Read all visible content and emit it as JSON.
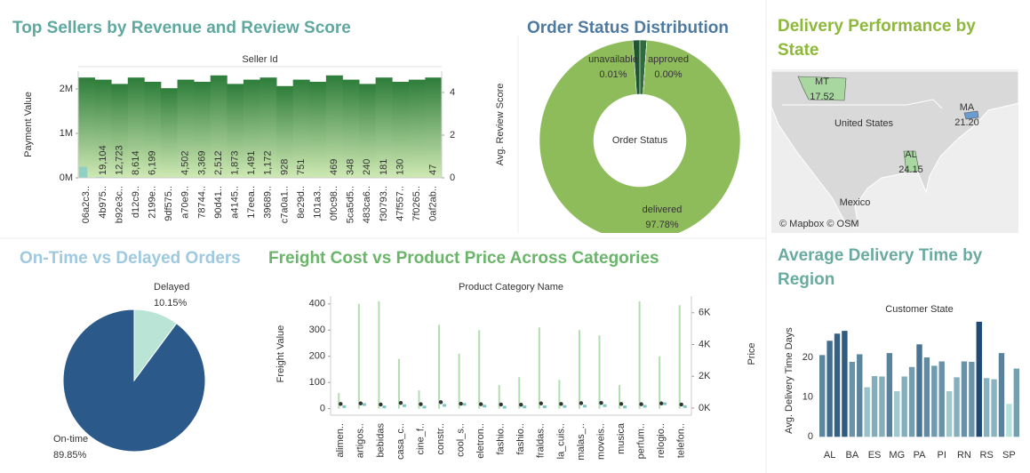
{
  "chart_data": [
    {
      "type": "combo",
      "title": "Top Sellers by Revenue and Review Score",
      "header": "Seller Id",
      "y_label": "Payment Value",
      "y2_label": "Avg. Review Score",
      "categories": [
        "06a2c3..",
        "4b975..",
        "b92e3c..",
        "d12c9..",
        "2199e..",
        "9df575..",
        "a70e9..",
        "78744..",
        "90d41..",
        "a4145..",
        "17eea..",
        "39689..",
        "c7a0a1..",
        "8e29d..",
        "101a3..",
        "0f0c98..",
        "5ca5d5..",
        "483ca6..",
        "f30793..",
        "47f557..",
        "7f0265..",
        "0af2ab.."
      ],
      "values": [
        250000,
        19104,
        12723,
        8614,
        6199,
        5000,
        4502,
        3369,
        2512,
        1873,
        1491,
        1172,
        928,
        751,
        600,
        469,
        348,
        240,
        181,
        130,
        90,
        47
      ],
      "value_labels": [
        null,
        "19,104",
        "12,723",
        "8,614",
        "6,199",
        null,
        "4,502",
        "3,369",
        "2,512",
        "1,873",
        "1,491",
        "1,172",
        "928",
        "751",
        null,
        "469",
        "348",
        "240",
        "181",
        "130",
        null,
        "47"
      ],
      "y2_values": [
        4.7,
        4.6,
        4.4,
        4.7,
        4.5,
        4.2,
        4.6,
        4.5,
        4.8,
        4.4,
        4.6,
        4.7,
        4.3,
        4.6,
        4.5,
        4.8,
        4.6,
        4.4,
        4.7,
        4.5,
        4.6,
        4.7
      ],
      "ylim": [
        0,
        2400000
      ],
      "yticks": [
        {
          "value": 0,
          "label": "0M"
        },
        {
          "value": 1000000,
          "label": "1M"
        },
        {
          "value": 2000000,
          "label": "2M"
        }
      ],
      "y2lim": [
        0,
        5
      ],
      "y2ticks": [
        0,
        2,
        4
      ],
      "color": "#8fd0c4",
      "y2_color_range": [
        "#cfe9b4",
        "#2e7d3a"
      ]
    },
    {
      "type": "donut",
      "title": "Order Status Distribution",
      "center_label": "Order Status",
      "categories": [
        null,
        null,
        "unavailable",
        "approved",
        "delivered"
      ],
      "values": [
        1.11,
        1.1,
        0.01,
        0.0,
        97.78
      ],
      "value_labels": [
        null,
        null,
        "0.01%",
        "0.00%",
        "97.78%"
      ],
      "colors": [
        "#1e5631",
        "#2f6b3c",
        "#173f26",
        "#3b7a45",
        "#8fbc5a"
      ]
    },
    {
      "type": "map",
      "title": "Delivery Performance by State",
      "categories": [
        "MT",
        "MA",
        "AL"
      ],
      "values": [
        17.52,
        21.2,
        24.15
      ],
      "value_labels": [
        "17.52",
        "21.20",
        "24.15"
      ],
      "colors": [
        "#a8d8a0",
        "#6a9bd1",
        "#a8d8a0"
      ],
      "places": [
        "United States",
        "Mexico"
      ],
      "attribution": "© Mapbox © OSM"
    },
    {
      "type": "pie",
      "title": "On-Time vs Delayed Orders",
      "categories": [
        "Delayed",
        "On-time"
      ],
      "values": [
        10.15,
        89.85
      ],
      "value_labels": [
        "10.15%",
        "89.85%"
      ],
      "colors": [
        "#b9e4d6",
        "#2b5a8a"
      ]
    },
    {
      "type": "box",
      "title": "Freight Cost vs Product Price Across Categories",
      "header": "Product Category Name",
      "y_label": "Freight Value",
      "y2_label": "Price",
      "categories": [
        "alimen..",
        "artigos..",
        "bebidas",
        "casa_c..",
        "cine_f..",
        "constr..",
        "cool_s..",
        "eletron..",
        "fashio..",
        "fashio..",
        "fraldas..",
        "la_cuis..",
        "malas_..",
        "moveis..",
        "musica",
        "perfum..",
        "relogio..",
        "telefon.."
      ],
      "values": [
        18,
        20,
        16,
        22,
        17,
        25,
        19,
        17,
        16,
        15,
        20,
        18,
        21,
        22,
        18,
        17,
        20,
        16
      ],
      "max_values": [
        60,
        400,
        410,
        190,
        70,
        320,
        210,
        300,
        90,
        120,
        310,
        110,
        300,
        280,
        90,
        410,
        200,
        395
      ],
      "y2_values": [
        120,
        250,
        100,
        180,
        90,
        200,
        260,
        150,
        80,
        100,
        110,
        130,
        150,
        180,
        100,
        140,
        300,
        120
      ],
      "ylim": [
        -25,
        430
      ],
      "yticks": [
        0,
        100,
        200,
        300,
        400
      ],
      "y2lim": [
        -450,
        7050
      ],
      "y2ticks": [
        {
          "value": 0,
          "label": "0K"
        },
        {
          "value": 2000,
          "label": "2K"
        },
        {
          "value": 4000,
          "label": "4K"
        },
        {
          "value": 6000,
          "label": "6K"
        }
      ],
      "color": "#9fd49a",
      "y2_color": "#7fc4c0"
    },
    {
      "type": "bar",
      "title": "Average Delivery Time by Region",
      "header": "Customer State",
      "y_label": "Avg. Delivery Time Days",
      "categories": [
        null,
        "AL",
        null,
        null,
        "BA",
        null,
        null,
        "ES",
        null,
        null,
        "MG",
        null,
        null,
        "PA",
        null,
        null,
        "PI",
        null,
        null,
        "RN",
        null,
        null,
        "RS",
        null,
        null,
        "SP",
        null
      ],
      "values": [
        20.6,
        24.2,
        26.0,
        26.7,
        18.9,
        20.8,
        12.5,
        15.3,
        15.2,
        21.1,
        11.5,
        15.2,
        17.6,
        23.3,
        20.0,
        17.9,
        19.0,
        11.5,
        15.0,
        19.0,
        18.9,
        29.0,
        14.8,
        14.5,
        21.1,
        8.3,
        17.2
      ],
      "ylim": [
        -1.5,
        33
      ],
      "yticks": [
        0,
        10,
        20
      ],
      "color_range": [
        "#b6e0df",
        "#1f4a75"
      ]
    }
  ]
}
